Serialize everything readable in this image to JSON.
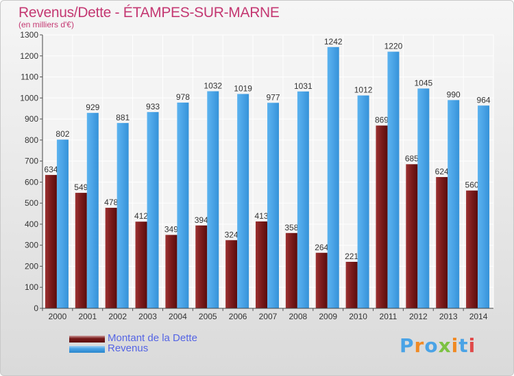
{
  "header": {
    "title": "Revenus/Dette - ÉTAMPES-SUR-MARNE",
    "subtitle": "(en milliers d'€)"
  },
  "chart_data": {
    "type": "bar",
    "title": "Revenus/Dette - ÉTAMPES-SUR-MARNE",
    "subtitle": "(en milliers d'€)",
    "categories": [
      "2000",
      "2001",
      "2002",
      "2003",
      "2004",
      "2005",
      "2006",
      "2007",
      "2008",
      "2009",
      "2010",
      "2011",
      "2012",
      "2013",
      "2014"
    ],
    "series": [
      {
        "name": "Montant de la Dette",
        "color": "#7a1b1b",
        "values": [
          634,
          549,
          478,
          412,
          349,
          394,
          324,
          413,
          358,
          264,
          221,
          869,
          685,
          624,
          560
        ]
      },
      {
        "name": "Revenus",
        "color": "#4aa3e6",
        "values": [
          802,
          929,
          881,
          933,
          978,
          1032,
          1019,
          977,
          1031,
          1242,
          1012,
          1220,
          1045,
          990,
          964
        ]
      }
    ],
    "ylim": [
      0,
      1300
    ],
    "yticks": [
      0,
      100,
      200,
      300,
      400,
      500,
      600,
      700,
      800,
      900,
      1000,
      1100,
      1200,
      1300
    ],
    "grid": true,
    "legend_position": "bottom-left"
  },
  "legend": {
    "items": [
      {
        "label": "Montant de la Dette",
        "color": "#7a1b1b"
      },
      {
        "label": "Revenus",
        "color": "#4aa3e6"
      }
    ]
  },
  "logo": {
    "text": "Proxiti"
  }
}
